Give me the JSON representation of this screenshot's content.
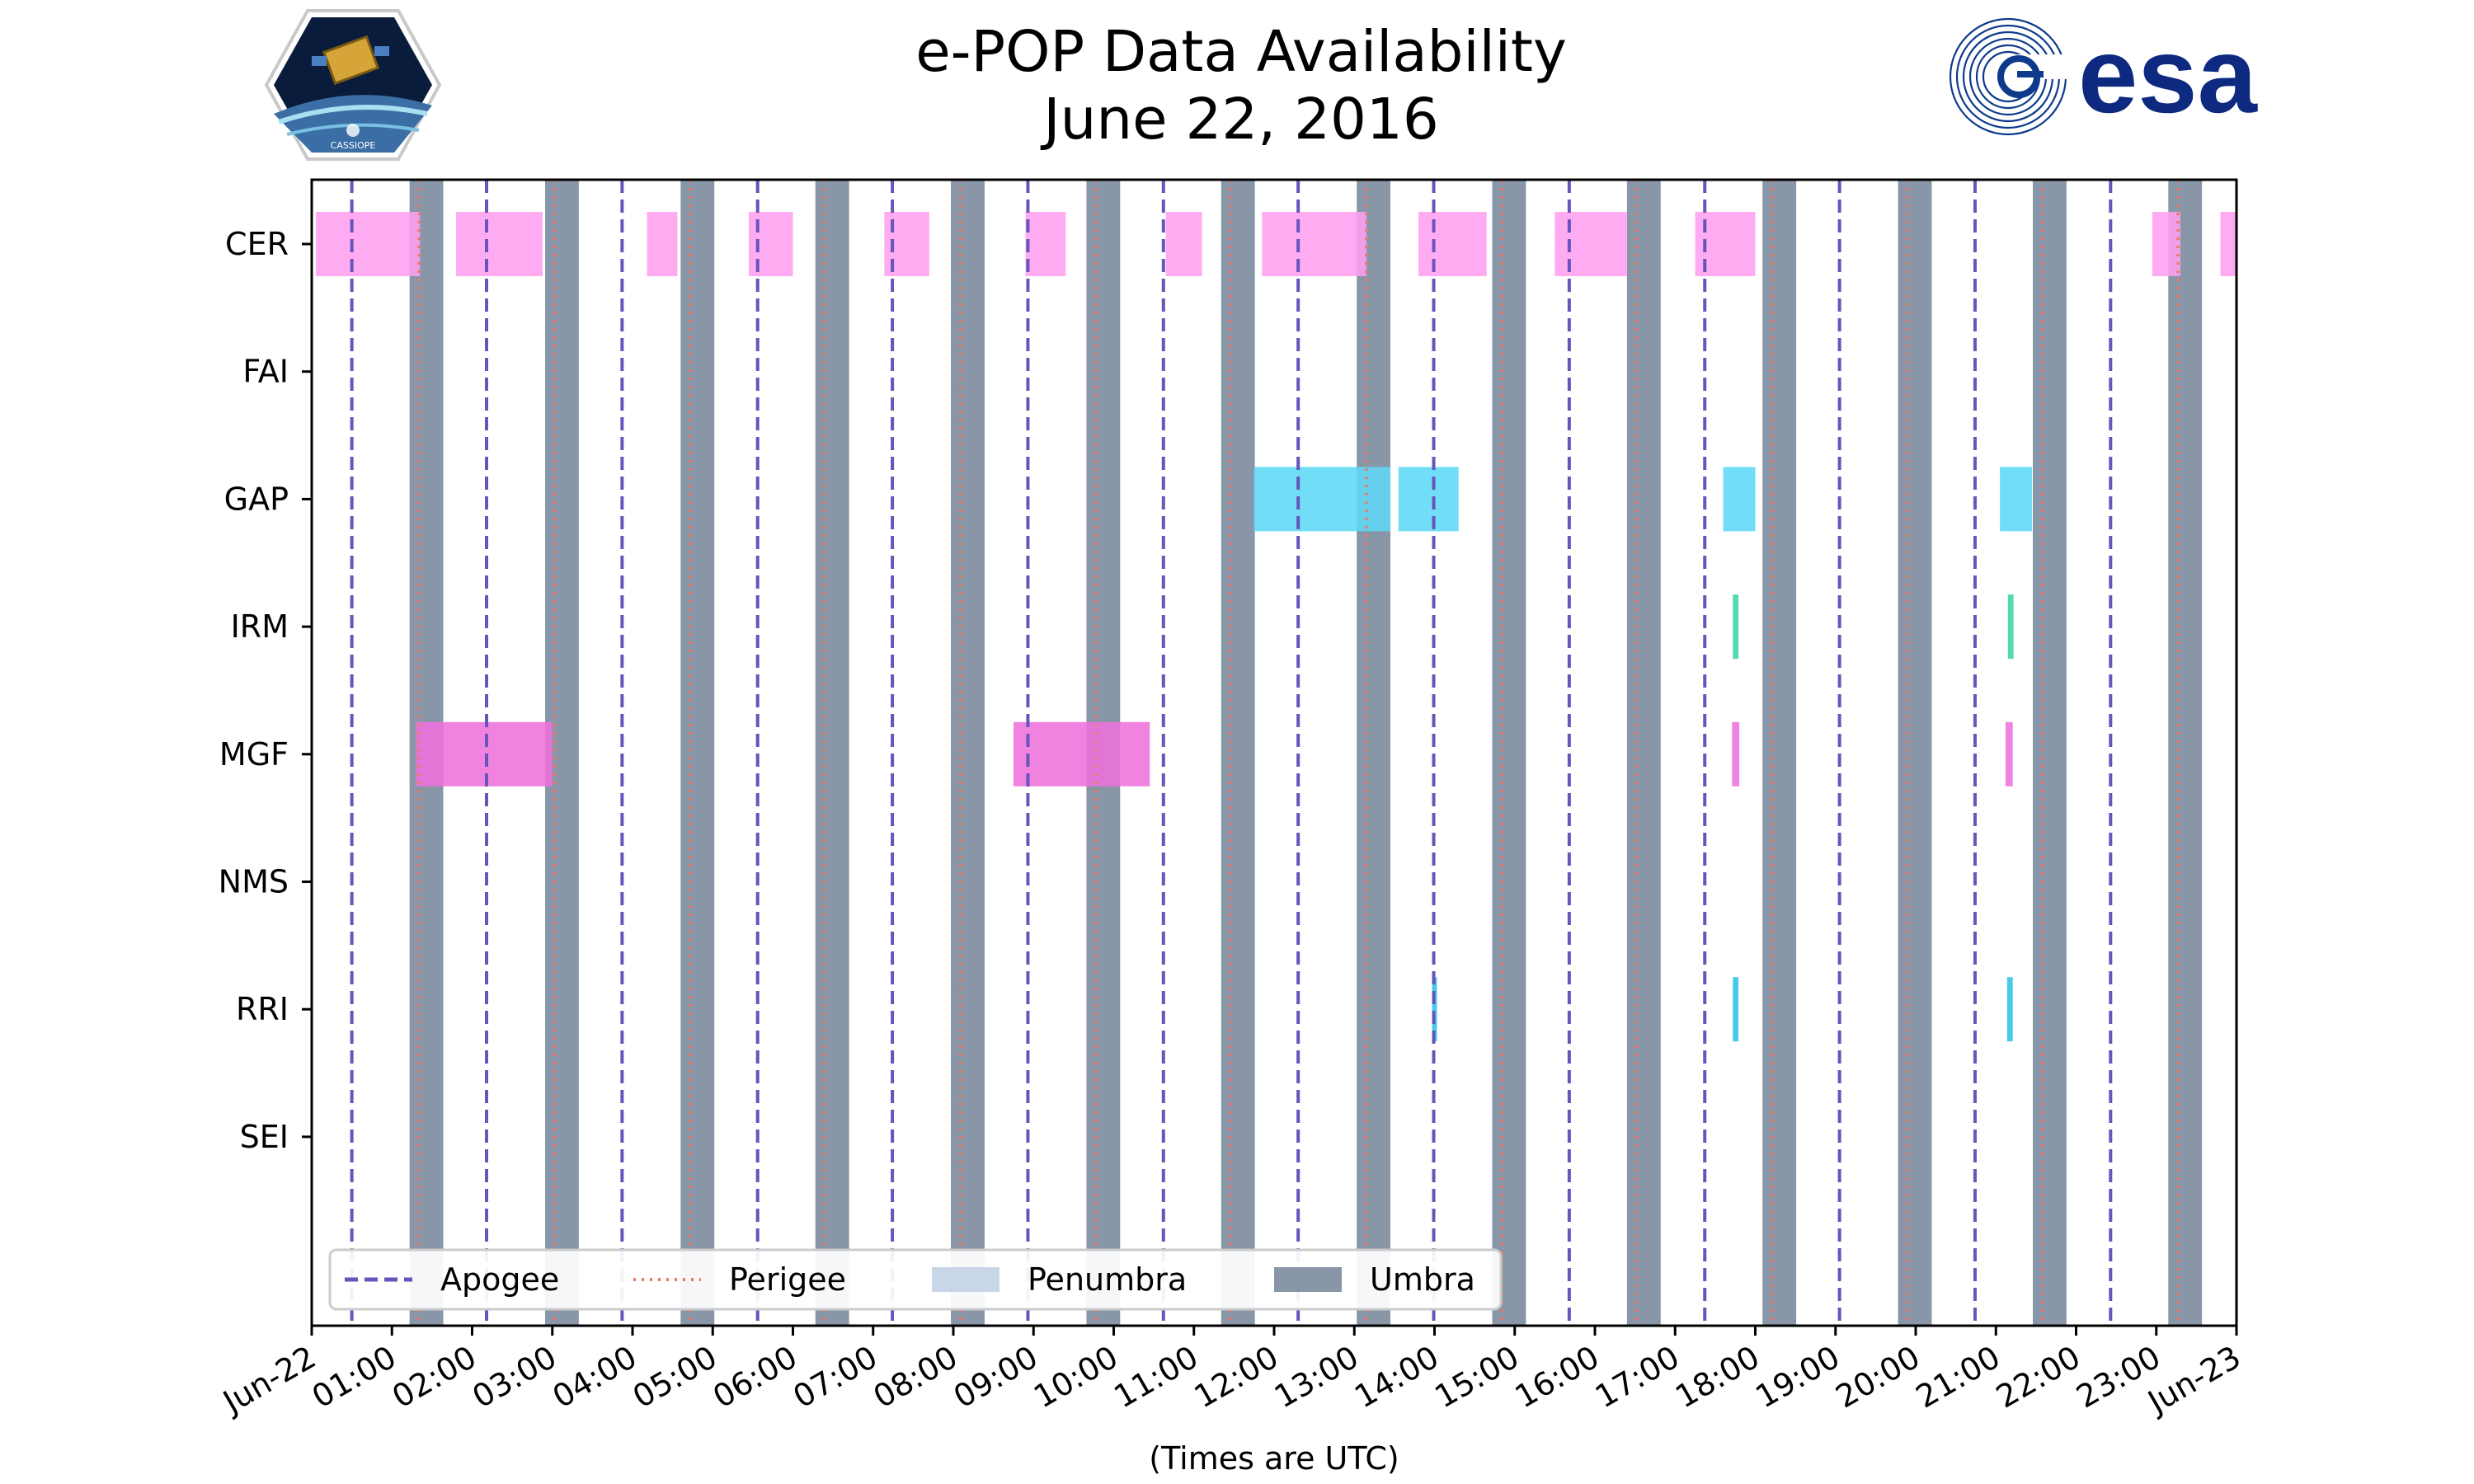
{
  "chart_data": {
    "type": "timeline",
    "title": "e-POP Data Availability",
    "subtitle": "June 22, 2016",
    "xlabel": "(Times are UTC)",
    "x_range_hours": [
      0,
      24
    ],
    "x_tick_labels": [
      "Jun-22",
      "01:00",
      "02:00",
      "03:00",
      "04:00",
      "05:00",
      "06:00",
      "07:00",
      "08:00",
      "09:00",
      "10:00",
      "11:00",
      "12:00",
      "13:00",
      "14:00",
      "15:00",
      "16:00",
      "17:00",
      "18:00",
      "19:00",
      "20:00",
      "21:00",
      "22:00",
      "23:00",
      "Jun-23"
    ],
    "instruments": [
      "CER",
      "FAI",
      "GAP",
      "IRM",
      "MGF",
      "NMS",
      "RRI",
      "SEI"
    ],
    "apogee_hours": [
      0.5,
      2.18,
      3.87,
      5.56,
      7.24,
      8.93,
      10.62,
      12.3,
      13.99,
      15.68,
      17.37,
      19.05,
      20.74,
      22.43
    ],
    "perigee_hours": [
      1.34,
      3.03,
      4.72,
      6.4,
      8.09,
      9.78,
      11.46,
      13.15,
      14.84,
      16.52,
      18.21,
      19.9,
      21.58,
      23.27
    ],
    "umbra_intervals": [
      [
        1.22,
        1.64
      ],
      [
        2.91,
        3.33
      ],
      [
        4.6,
        5.02
      ],
      [
        6.28,
        6.7
      ],
      [
        7.97,
        8.39
      ],
      [
        9.66,
        10.08
      ],
      [
        11.34,
        11.76
      ],
      [
        13.03,
        13.45
      ],
      [
        14.72,
        15.14
      ],
      [
        16.4,
        16.82
      ],
      [
        18.09,
        18.51
      ],
      [
        19.78,
        20.2
      ],
      [
        21.46,
        21.88
      ],
      [
        23.15,
        23.57
      ]
    ],
    "series": [
      {
        "name": "CER",
        "color": "#ff9ff0",
        "intervals": [
          [
            0.05,
            1.35
          ],
          [
            1.8,
            2.88
          ],
          [
            4.18,
            4.56
          ],
          [
            5.45,
            6.0
          ],
          [
            7.14,
            7.7
          ],
          [
            8.9,
            9.4
          ],
          [
            10.65,
            11.1
          ],
          [
            11.85,
            13.15
          ],
          [
            13.8,
            14.65
          ],
          [
            15.5,
            16.4
          ],
          [
            17.25,
            18.0
          ],
          [
            22.95,
            23.3
          ],
          [
            23.8,
            24.0
          ]
        ]
      },
      {
        "name": "GAP",
        "color": "#5fd8f5",
        "intervals": [
          [
            11.75,
            13.45
          ],
          [
            13.55,
            14.3
          ],
          [
            17.6,
            18.0
          ],
          [
            21.05,
            21.45
          ]
        ]
      },
      {
        "name": "IRM",
        "color": "#3ed4a8",
        "intervals": [
          [
            17.72,
            17.79
          ],
          [
            21.15,
            21.22
          ]
        ]
      },
      {
        "name": "MGF",
        "color": "#ee72dc",
        "intervals": [
          [
            1.3,
            3.0
          ],
          [
            8.75,
            10.45
          ],
          [
            17.71,
            17.8
          ],
          [
            21.12,
            21.21
          ]
        ]
      },
      {
        "name": "RRI",
        "color": "#2cc4e8",
        "intervals": [
          [
            13.97,
            14.03
          ],
          [
            17.72,
            17.79
          ],
          [
            21.14,
            21.21
          ]
        ]
      }
    ],
    "legend": {
      "position": "bottom-left",
      "items": [
        {
          "label": "Apogee",
          "style": "dashed",
          "color": "#6655bb"
        },
        {
          "label": "Perigee",
          "style": "dotted",
          "color": "#ee7766"
        },
        {
          "label": "Penumbra",
          "style": "patch",
          "color": "#c8d6e8"
        },
        {
          "label": "Umbra",
          "style": "patch",
          "color": "#8896a8"
        }
      ]
    },
    "colors": {
      "apogee": "#6655bb",
      "perigee": "#ee7766",
      "umbra": "#8896a8",
      "penumbra": "#c8d6e8"
    }
  },
  "logos": {
    "left_text": "CASSIOPE",
    "right_text": "esa"
  }
}
